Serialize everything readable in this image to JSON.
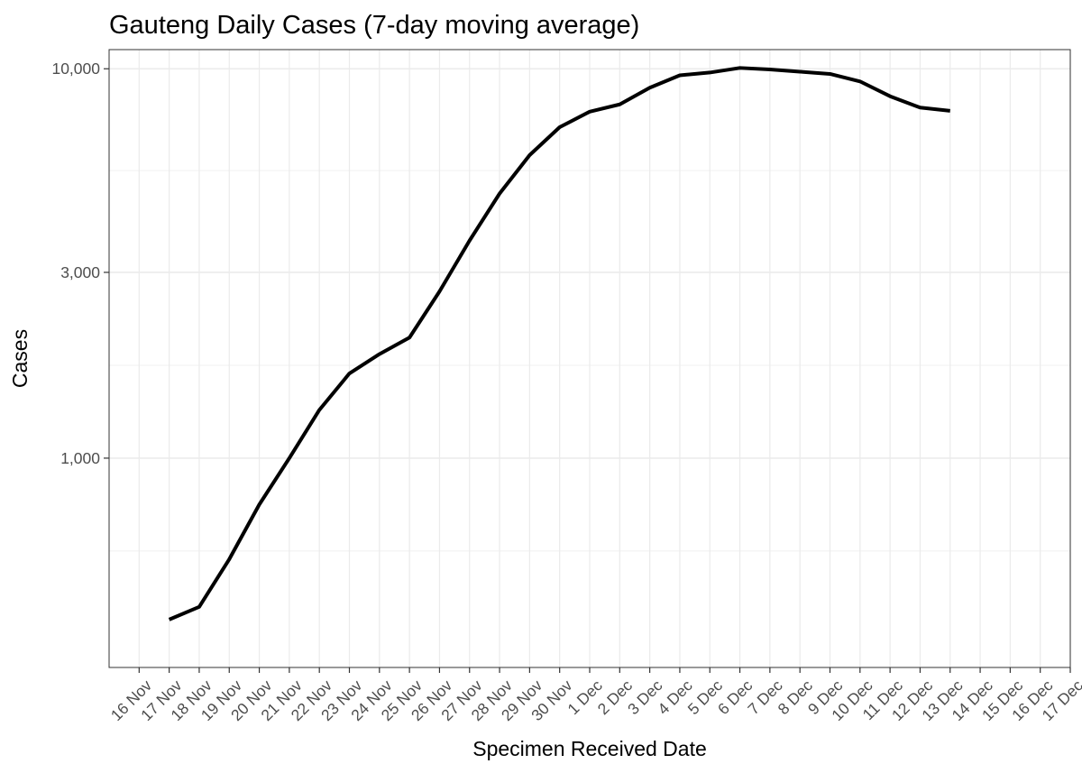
{
  "chart_data": {
    "type": "line",
    "title": "Gauteng Daily Cases (7-day moving average)",
    "xlabel": "Specimen Received Date",
    "ylabel": "Cases",
    "x_ticks": [
      "16 Nov",
      "17 Nov",
      "18 Nov",
      "19 Nov",
      "20 Nov",
      "21 Nov",
      "22 Nov",
      "23 Nov",
      "24 Nov",
      "25 Nov",
      "26 Nov",
      "27 Nov",
      "28 Nov",
      "29 Nov",
      "30 Nov",
      "1 Dec",
      "2 Dec",
      "3 Dec",
      "4 Dec",
      "5 Dec",
      "6 Dec",
      "7 Dec",
      "8 Dec",
      "9 Dec",
      "10 Dec",
      "11 Dec",
      "12 Dec",
      "13 Dec",
      "14 Dec",
      "15 Dec",
      "16 Dec",
      "17 Dec"
    ],
    "y_scale": "log",
    "y_ticks": [
      1000,
      3000,
      10000
    ],
    "y_tick_labels": [
      "1,000",
      "3,000",
      "10,000"
    ],
    "ylim": [
      290,
      11200
    ],
    "xlim": [
      "15 Nov 2021",
      "17 Dec 2021"
    ],
    "grid": true,
    "line_color": "#000000",
    "series": [
      {
        "x": [
          "17 Nov",
          "18 Nov",
          "19 Nov",
          "20 Nov",
          "21 Nov",
          "22 Nov",
          "23 Nov",
          "24 Nov",
          "25 Nov",
          "26 Nov",
          "27 Nov",
          "28 Nov",
          "29 Nov",
          "30 Nov",
          "1 Dec",
          "2 Dec",
          "3 Dec",
          "4 Dec",
          "5 Dec",
          "6 Dec",
          "7 Dec",
          "8 Dec",
          "9 Dec",
          "10 Dec",
          "11 Dec",
          "12 Dec",
          "13 Dec"
        ],
        "values": [
          385,
          415,
          550,
          760,
          1000,
          1330,
          1650,
          1850,
          2040,
          2680,
          3620,
          4780,
          6000,
          7080,
          7760,
          8100,
          8940,
          9620,
          9780,
          10050,
          9960,
          9830,
          9700,
          9280,
          8500,
          7950,
          7800
        ]
      }
    ]
  }
}
